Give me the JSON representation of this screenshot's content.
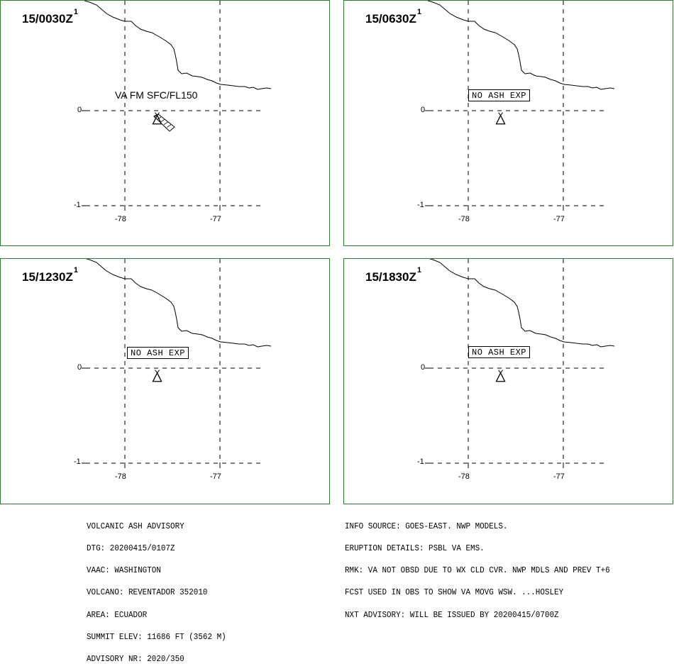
{
  "colors": {
    "panel_border": "#2e7d32",
    "line": "#000000",
    "background": "#ffffff"
  },
  "panels": [
    {
      "time": "15/0030Z",
      "sup": "1",
      "note": "VA FM SFC/FL150",
      "note_boxed": false,
      "ash_polygon": true
    },
    {
      "time": "15/0630Z",
      "sup": "1",
      "note": "NO ASH EXP",
      "note_boxed": true,
      "ash_polygon": false
    },
    {
      "time": "15/1230Z",
      "sup": "1",
      "note": "NO ASH EXP",
      "note_boxed": true,
      "ash_polygon": false
    },
    {
      "time": "15/1830Z",
      "sup": "1",
      "note": "NO ASH EXP",
      "note_boxed": true,
      "ash_polygon": false
    }
  ],
  "grid": {
    "lat_labels": [
      "0",
      "-1"
    ],
    "lon_labels": [
      "-78",
      "-77"
    ],
    "lat_values": [
      0,
      -1
    ],
    "lon_values": [
      -78,
      -77
    ],
    "style": "dashed"
  },
  "volcano": {
    "symbol": "volcano-icon",
    "lat": -0.08,
    "lon": -77.66
  },
  "advisory_left": [
    "VOLCANIC ASH ADVISORY",
    "DTG: 20200415/0107Z",
    "VAAC: WASHINGTON",
    "VOLCANO: REVENTADOR 352010",
    "AREA: ECUADOR",
    "SUMMIT ELEV: 11686 FT (3562 M)",
    "ADVISORY NR: 2020/350"
  ],
  "advisory_right": [
    "INFO SOURCE: GOES-EAST. NWP MODELS.",
    "ERUPTION DETAILS: PSBL VA EMS.",
    "RMK: VA NOT OBSD DUE TO WX CLD CVR. NWP MDLS AND PREV T+6",
    "FCST USED IN OBS TO SHOW VA MOVG WSW. ...HOSLEY",
    "NXT ADVISORY: WILL BE ISSUED BY 20200415/0700Z"
  ]
}
